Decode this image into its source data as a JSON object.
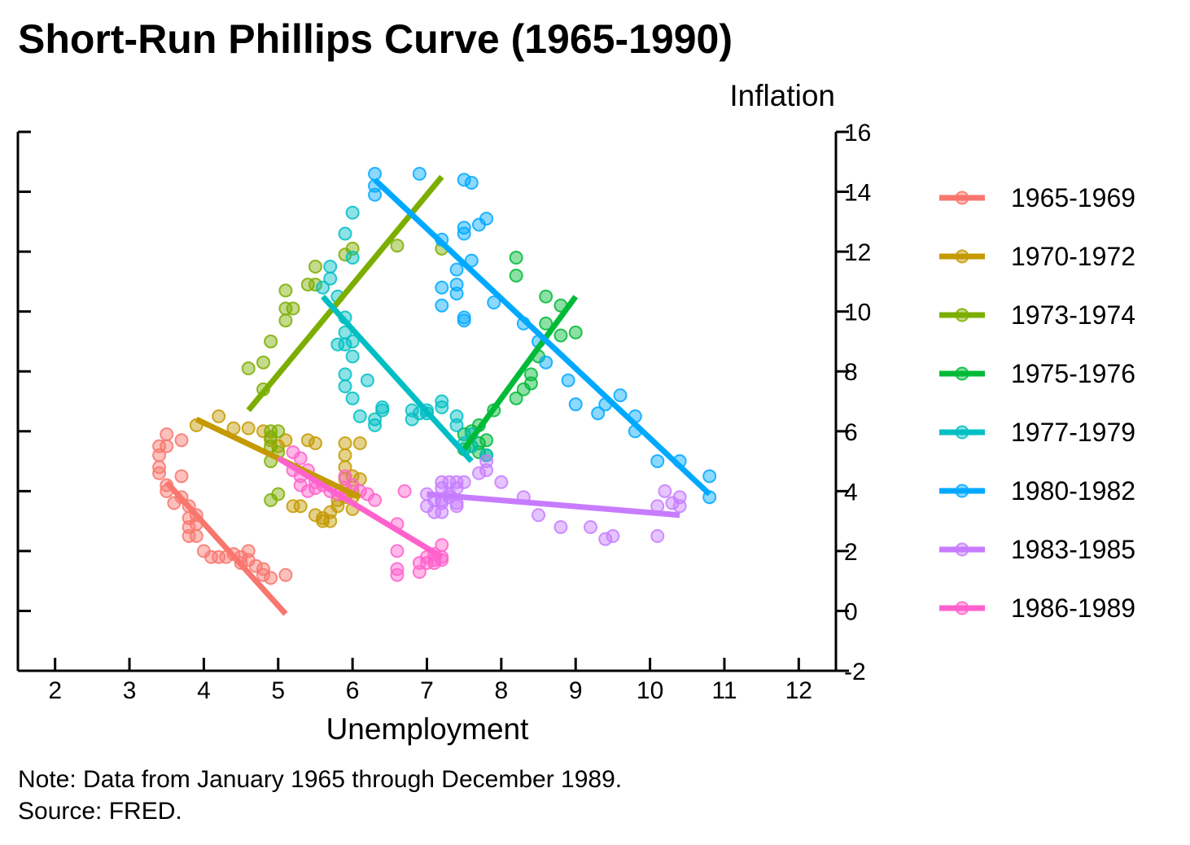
{
  "chart_data": {
    "type": "scatter",
    "title": "Short-Run Phillips Curve (1965-1990)",
    "xlabel": "Unemployment",
    "ylabel": "Inflation",
    "xlim": [
      1.5,
      12.5
    ],
    "ylim": [
      -2,
      16
    ],
    "x_ticks": [
      "2",
      "3",
      "4",
      "5",
      "6",
      "7",
      "8",
      "9",
      "10",
      "11",
      "12"
    ],
    "y_ticks": [
      "-2",
      "0",
      "2",
      "4",
      "6",
      "8",
      "10",
      "12",
      "14",
      "16"
    ],
    "y_axis_side": "right",
    "grid": false,
    "legend_position": "right",
    "series": [
      {
        "name": "1965-1969",
        "color": "#F8766D",
        "trend": [
          [
            3.5,
            4.3
          ],
          [
            5.1,
            -0.1
          ]
        ],
        "points": [
          [
            3.4,
            5.2
          ],
          [
            3.4,
            5.5
          ],
          [
            3.5,
            5.9
          ],
          [
            3.5,
            5.5
          ],
          [
            3.4,
            4.8
          ],
          [
            3.4,
            4.6
          ],
          [
            3.5,
            4.2
          ],
          [
            3.5,
            4.0
          ],
          [
            3.6,
            3.6
          ],
          [
            3.7,
            4.5
          ],
          [
            3.7,
            3.8
          ],
          [
            3.8,
            3.5
          ],
          [
            3.8,
            3.1
          ],
          [
            3.8,
            2.8
          ],
          [
            3.8,
            2.5
          ],
          [
            3.9,
            3.2
          ],
          [
            3.9,
            2.9
          ],
          [
            3.7,
            5.7
          ],
          [
            3.9,
            2.5
          ],
          [
            4.0,
            2.0
          ],
          [
            4.1,
            1.8
          ],
          [
            4.2,
            1.8
          ],
          [
            4.3,
            1.8
          ],
          [
            4.4,
            1.9
          ],
          [
            4.5,
            1.8
          ],
          [
            4.5,
            1.6
          ],
          [
            4.6,
            1.7
          ],
          [
            4.6,
            2.0
          ],
          [
            4.7,
            1.5
          ],
          [
            4.8,
            1.4
          ],
          [
            4.8,
            1.2
          ],
          [
            4.9,
            1.1
          ],
          [
            5.1,
            1.2
          ]
        ]
      },
      {
        "name": "1970-1972",
        "color": "#C49A00",
        "trend": [
          [
            3.9,
            6.4
          ],
          [
            6.1,
            3.8
          ]
        ],
        "points": [
          [
            3.9,
            6.2
          ],
          [
            4.2,
            6.5
          ],
          [
            4.4,
            6.1
          ],
          [
            4.6,
            6.1
          ],
          [
            4.8,
            6.0
          ],
          [
            4.9,
            5.7
          ],
          [
            5.0,
            5.5
          ],
          [
            5.1,
            5.7
          ],
          [
            5.2,
            3.5
          ],
          [
            5.3,
            3.5
          ],
          [
            5.4,
            5.7
          ],
          [
            5.5,
            3.2
          ],
          [
            5.5,
            5.6
          ],
          [
            5.6,
            3.0
          ],
          [
            5.6,
            3.1
          ],
          [
            5.7,
            3.0
          ],
          [
            5.7,
            3.3
          ],
          [
            5.8,
            3.5
          ],
          [
            5.8,
            3.7
          ],
          [
            5.9,
            3.8
          ],
          [
            5.9,
            4.4
          ],
          [
            5.9,
            4.8
          ],
          [
            5.9,
            5.2
          ],
          [
            5.9,
            5.6
          ],
          [
            6.0,
            3.4
          ],
          [
            6.0,
            4.0
          ],
          [
            6.0,
            4.5
          ],
          [
            6.1,
            5.6
          ],
          [
            6.1,
            4.4
          ],
          [
            6.0,
            3.8
          ]
        ]
      },
      {
        "name": "1973-1974",
        "color": "#7CAE00",
        "trend": [
          [
            4.6,
            6.7
          ],
          [
            7.2,
            14.5
          ]
        ],
        "points": [
          [
            4.6,
            8.1
          ],
          [
            4.8,
            8.3
          ],
          [
            4.8,
            7.4
          ],
          [
            4.9,
            9.0
          ],
          [
            4.9,
            6.0
          ],
          [
            4.9,
            5.8
          ],
          [
            4.9,
            5.0
          ],
          [
            4.9,
            3.7
          ],
          [
            5.0,
            5.3
          ],
          [
            5.0,
            3.9
          ],
          [
            5.1,
            9.7
          ],
          [
            5.1,
            10.1
          ],
          [
            5.1,
            10.7
          ],
          [
            5.2,
            10.1
          ],
          [
            5.4,
            10.9
          ],
          [
            5.5,
            10.9
          ],
          [
            5.5,
            11.5
          ],
          [
            5.9,
            11.9
          ],
          [
            6.0,
            12.1
          ],
          [
            6.6,
            12.2
          ],
          [
            7.2,
            12.1
          ],
          [
            5.0,
            6.0
          ],
          [
            4.9,
            5.5
          ]
        ]
      },
      {
        "name": "1975-1976",
        "color": "#00BA38",
        "trend": [
          [
            7.5,
            5.4
          ],
          [
            9.0,
            10.5
          ]
        ],
        "points": [
          [
            7.5,
            5.4
          ],
          [
            7.5,
            5.9
          ],
          [
            7.6,
            6.0
          ],
          [
            7.6,
            5.5
          ],
          [
            7.7,
            6.2
          ],
          [
            7.7,
            5.6
          ],
          [
            7.7,
            5.3
          ],
          [
            7.8,
            5.7
          ],
          [
            7.8,
            5.2
          ],
          [
            7.9,
            6.7
          ],
          [
            8.2,
            11.8
          ],
          [
            8.2,
            11.2
          ],
          [
            8.2,
            7.1
          ],
          [
            8.3,
            7.4
          ],
          [
            8.4,
            7.9
          ],
          [
            8.4,
            7.6
          ],
          [
            8.5,
            8.5
          ],
          [
            8.6,
            10.5
          ],
          [
            8.6,
            9.6
          ],
          [
            8.8,
            10.2
          ],
          [
            8.8,
            9.2
          ],
          [
            9.0,
            9.3
          ]
        ]
      },
      {
        "name": "1977-1979",
        "color": "#00BFC4",
        "trend": [
          [
            5.6,
            10.5
          ],
          [
            7.6,
            5.0
          ]
        ],
        "points": [
          [
            5.6,
            10.8
          ],
          [
            5.7,
            11.5
          ],
          [
            5.7,
            11.1
          ],
          [
            5.8,
            10.5
          ],
          [
            5.8,
            8.9
          ],
          [
            5.9,
            9.8
          ],
          [
            5.9,
            9.3
          ],
          [
            5.9,
            8.9
          ],
          [
            5.9,
            7.9
          ],
          [
            5.9,
            7.5
          ],
          [
            5.9,
            12.6
          ],
          [
            6.0,
            13.3
          ],
          [
            6.0,
            11.8
          ],
          [
            6.0,
            9.0
          ],
          [
            6.0,
            8.5
          ],
          [
            6.0,
            7.1
          ],
          [
            6.1,
            6.5
          ],
          [
            6.2,
            7.7
          ],
          [
            6.3,
            6.4
          ],
          [
            6.3,
            6.2
          ],
          [
            6.4,
            6.8
          ],
          [
            6.4,
            6.7
          ],
          [
            6.8,
            6.7
          ],
          [
            6.8,
            6.4
          ],
          [
            6.9,
            6.6
          ],
          [
            7.0,
            6.6
          ],
          [
            7.0,
            6.7
          ],
          [
            7.2,
            6.8
          ],
          [
            7.2,
            7.0
          ],
          [
            7.4,
            6.5
          ],
          [
            7.4,
            6.2
          ],
          [
            7.5,
            5.6
          ],
          [
            7.6,
            5.9
          ],
          [
            7.8,
            5.2
          ],
          [
            7.6,
            5.5
          ]
        ]
      },
      {
        "name": "1980-1982",
        "color": "#00A9FF",
        "trend": [
          [
            6.3,
            14.4
          ],
          [
            10.8,
            3.9
          ]
        ],
        "points": [
          [
            6.3,
            14.6
          ],
          [
            6.3,
            14.2
          ],
          [
            6.3,
            13.9
          ],
          [
            6.9,
            14.6
          ],
          [
            7.2,
            12.4
          ],
          [
            7.2,
            10.8
          ],
          [
            7.2,
            10.2
          ],
          [
            7.4,
            11.4
          ],
          [
            7.4,
            10.9
          ],
          [
            7.4,
            10.6
          ],
          [
            7.5,
            14.4
          ],
          [
            7.5,
            12.8
          ],
          [
            7.5,
            12.6
          ],
          [
            7.5,
            9.8
          ],
          [
            7.5,
            9.7
          ],
          [
            7.6,
            14.3
          ],
          [
            7.6,
            11.7
          ],
          [
            7.7,
            12.9
          ],
          [
            7.8,
            13.1
          ],
          [
            7.9,
            10.3
          ],
          [
            8.3,
            9.6
          ],
          [
            8.5,
            9.0
          ],
          [
            8.6,
            8.3
          ],
          [
            8.9,
            7.7
          ],
          [
            9.0,
            6.9
          ],
          [
            9.3,
            6.6
          ],
          [
            9.4,
            6.9
          ],
          [
            9.6,
            7.2
          ],
          [
            9.8,
            6.5
          ],
          [
            9.8,
            6.0
          ],
          [
            10.1,
            5.0
          ],
          [
            10.4,
            5.0
          ],
          [
            10.8,
            4.5
          ],
          [
            10.8,
            3.8
          ]
        ]
      },
      {
        "name": "1983-1985",
        "color": "#C77CFF",
        "trend": [
          [
            7.0,
            3.9
          ],
          [
            10.4,
            3.2
          ]
        ],
        "points": [
          [
            7.0,
            3.9
          ],
          [
            7.0,
            3.5
          ],
          [
            7.1,
            3.3
          ],
          [
            7.1,
            3.7
          ],
          [
            7.2,
            3.6
          ],
          [
            7.2,
            3.3
          ],
          [
            7.2,
            3.7
          ],
          [
            7.2,
            4.3
          ],
          [
            7.2,
            4.1
          ],
          [
            7.3,
            4.3
          ],
          [
            7.3,
            3.9
          ],
          [
            7.3,
            3.8
          ],
          [
            7.4,
            3.6
          ],
          [
            7.4,
            3.5
          ],
          [
            7.4,
            4.1
          ],
          [
            7.5,
            4.3
          ],
          [
            7.4,
            4.3
          ],
          [
            7.7,
            4.6
          ],
          [
            7.8,
            4.7
          ],
          [
            7.8,
            5.0
          ],
          [
            8.0,
            4.3
          ],
          [
            8.3,
            3.8
          ],
          [
            8.5,
            3.2
          ],
          [
            8.8,
            2.8
          ],
          [
            9.2,
            2.8
          ],
          [
            9.4,
            2.4
          ],
          [
            9.5,
            2.5
          ],
          [
            10.1,
            3.5
          ],
          [
            10.1,
            2.5
          ],
          [
            10.2,
            4.0
          ],
          [
            10.3,
            3.6
          ],
          [
            10.4,
            3.8
          ],
          [
            10.4,
            3.5
          ]
        ]
      },
      {
        "name": "1986-1989",
        "color": "#FF61CC",
        "trend": [
          [
            5.0,
            5.1
          ],
          [
            7.2,
            1.8
          ]
        ],
        "points": [
          [
            5.2,
            5.3
          ],
          [
            5.3,
            5.1
          ],
          [
            5.2,
            4.7
          ],
          [
            5.3,
            4.5
          ],
          [
            5.3,
            4.2
          ],
          [
            5.4,
            4.7
          ],
          [
            5.4,
            4.0
          ],
          [
            5.5,
            4.3
          ],
          [
            5.5,
            4.1
          ],
          [
            5.6,
            4.2
          ],
          [
            5.7,
            4.0
          ],
          [
            5.8,
            3.9
          ],
          [
            5.9,
            4.1
          ],
          [
            5.9,
            4.5
          ],
          [
            6.0,
            4.2
          ],
          [
            6.1,
            4.0
          ],
          [
            6.2,
            3.9
          ],
          [
            6.3,
            3.7
          ],
          [
            6.6,
            2.9
          ],
          [
            6.6,
            2.0
          ],
          [
            6.6,
            1.4
          ],
          [
            6.6,
            1.2
          ],
          [
            6.7,
            4.0
          ],
          [
            6.9,
            1.6
          ],
          [
            6.9,
            1.3
          ],
          [
            7.0,
            1.8
          ],
          [
            7.0,
            1.6
          ],
          [
            7.1,
            1.9
          ],
          [
            7.1,
            1.7
          ],
          [
            7.1,
            1.6
          ],
          [
            7.2,
            2.2
          ],
          [
            7.2,
            1.8
          ],
          [
            7.2,
            1.7
          ]
        ]
      }
    ],
    "note_lines": [
      "Note: Data from January 1965 through December 1989.",
      "Source: FRED."
    ]
  }
}
